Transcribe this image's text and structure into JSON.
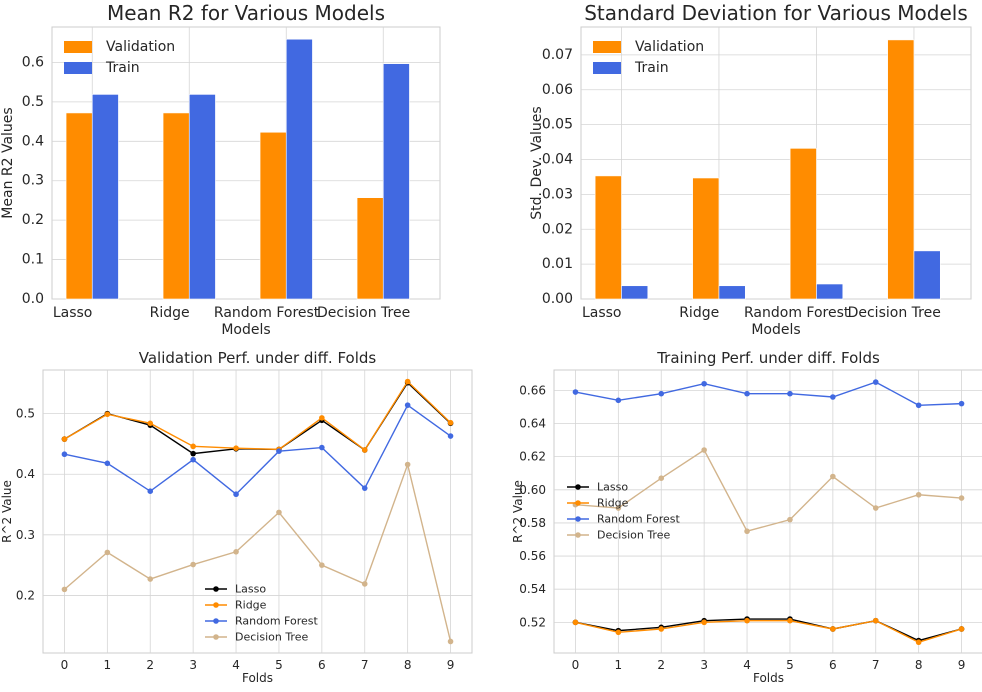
{
  "chart_data": [
    {
      "type": "bar",
      "title": "Mean R2 for Various Models",
      "xlabel": "Models",
      "ylabel": "Mean R2 Values",
      "categories": [
        "Lasso",
        "Ridge",
        "Random Forest",
        "Decision Tree"
      ],
      "ylim": [
        0,
        0.69
      ],
      "yticks": [
        "0.0",
        "0.1",
        "0.2",
        "0.3",
        "0.4",
        "0.5",
        "0.6"
      ],
      "grid": true,
      "legend_position": "top-left",
      "series": [
        {
          "name": "Validation",
          "color": "#ff8c00",
          "values": [
            0.472,
            0.472,
            0.423,
            0.257
          ]
        },
        {
          "name": "Train",
          "color": "#4169e1",
          "values": [
            0.519,
            0.519,
            0.659,
            0.597
          ]
        }
      ]
    },
    {
      "type": "bar",
      "title": "Standard Deviation for Various Models",
      "xlabel": "Models",
      "ylabel": "Std. Dev. Values",
      "categories": [
        "Lasso",
        "Ridge",
        "Random Forest",
        "Decision Tree"
      ],
      "ylim": [
        0,
        0.078
      ],
      "yticks": [
        "0.00",
        "0.01",
        "0.02",
        "0.03",
        "0.04",
        "0.05",
        "0.06",
        "0.07"
      ],
      "grid": true,
      "legend_position": "top-left",
      "series": [
        {
          "name": "Validation",
          "color": "#ff8c00",
          "values": [
            0.0353,
            0.0347,
            0.0432,
            0.0743
          ]
        },
        {
          "name": "Train",
          "color": "#4169e1",
          "values": [
            0.0038,
            0.0038,
            0.0043,
            0.0138
          ]
        }
      ]
    },
    {
      "type": "line",
      "title": "Validation Perf. under diff. Folds",
      "xlabel": "Folds",
      "ylabel": "R^2 Value",
      "x": [
        0,
        1,
        2,
        3,
        4,
        5,
        6,
        7,
        8,
        9
      ],
      "xticks": [
        "0",
        "1",
        "2",
        "3",
        "4",
        "5",
        "6",
        "7",
        "8",
        "9"
      ],
      "ylim": [
        0.105,
        0.572
      ],
      "yticks": [
        "0.2",
        "0.3",
        "0.4",
        "0.5"
      ],
      "grid": true,
      "legend_position": "lower-center",
      "series": [
        {
          "name": "Lasso",
          "color": "#000000",
          "values": [
            0.458,
            0.5,
            0.481,
            0.434,
            0.442,
            0.441,
            0.489,
            0.44,
            0.551,
            0.484
          ]
        },
        {
          "name": "Ridge",
          "color": "#ff8c00",
          "values": [
            0.458,
            0.499,
            0.484,
            0.446,
            0.443,
            0.441,
            0.493,
            0.44,
            0.553,
            0.485
          ]
        },
        {
          "name": "Random Forest",
          "color": "#4169e1",
          "values": [
            0.433,
            0.418,
            0.372,
            0.424,
            0.367,
            0.438,
            0.444,
            0.377,
            0.514,
            0.463
          ]
        },
        {
          "name": "Decision Tree",
          "color": "#d2b48c",
          "values": [
            0.21,
            0.271,
            0.227,
            0.251,
            0.272,
            0.337,
            0.25,
            0.219,
            0.416,
            0.124
          ]
        }
      ]
    },
    {
      "type": "line",
      "title": "Training Perf. under diff. Folds",
      "xlabel": "Folds",
      "ylabel": "R^2 Value",
      "x": [
        0,
        1,
        2,
        3,
        4,
        5,
        6,
        7,
        8,
        9
      ],
      "xticks": [
        "0",
        "1",
        "2",
        "3",
        "4",
        "5",
        "6",
        "7",
        "8",
        "9"
      ],
      "ylim": [
        0.5015,
        0.6723
      ],
      "yticks": [
        "0.52",
        "0.54",
        "0.56",
        "0.58",
        "0.60",
        "0.62",
        "0.64",
        "0.66"
      ],
      "grid": true,
      "legend_position": "center-left",
      "series": [
        {
          "name": "Lasso",
          "color": "#000000",
          "values": [
            0.52,
            0.515,
            0.517,
            0.521,
            0.522,
            0.522,
            0.516,
            0.521,
            0.509,
            0.516
          ]
        },
        {
          "name": "Ridge",
          "color": "#ff8c00",
          "values": [
            0.52,
            0.514,
            0.516,
            0.52,
            0.521,
            0.521,
            0.516,
            0.521,
            0.508,
            0.516
          ]
        },
        {
          "name": "Random Forest",
          "color": "#4169e1",
          "values": [
            0.659,
            0.654,
            0.658,
            0.664,
            0.658,
            0.658,
            0.656,
            0.665,
            0.651,
            0.652
          ]
        },
        {
          "name": "Decision Tree",
          "color": "#d2b48c",
          "values": [
            0.591,
            0.589,
            0.607,
            0.624,
            0.575,
            0.582,
            0.608,
            0.589,
            0.597,
            0.595
          ]
        }
      ]
    }
  ]
}
